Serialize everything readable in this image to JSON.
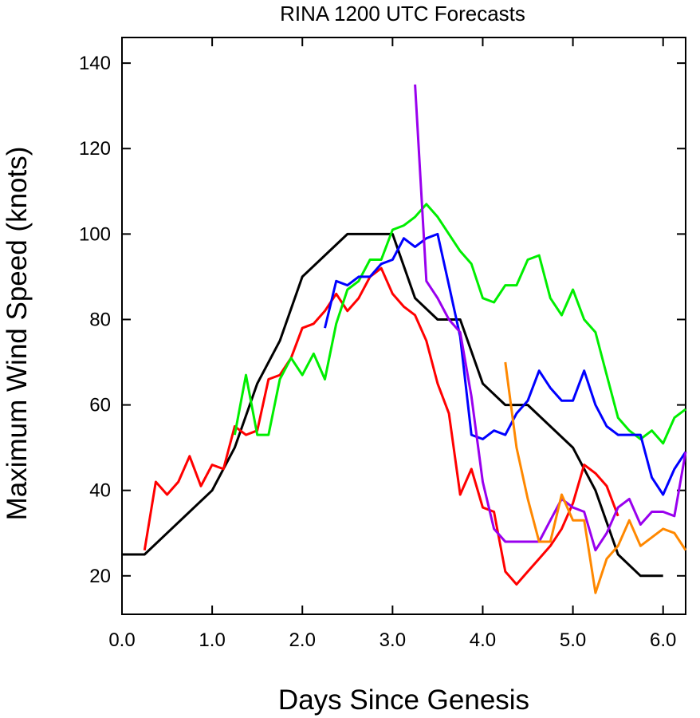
{
  "chart_data": {
    "type": "line",
    "title": "RINA 1200 UTC Forecasts",
    "xlabel": "Days Since Genesis",
    "ylabel": "Maximum Wind Speed (knots)",
    "xlim": [
      0,
      6.25
    ],
    "ylim": [
      11,
      146
    ],
    "xticks": [
      0,
      1,
      2,
      3,
      4,
      5,
      6
    ],
    "xtick_labels": [
      "0.0",
      "1.0",
      "2.0",
      "3.0",
      "4.0",
      "5.0",
      "6.0"
    ],
    "yticks": [
      20,
      40,
      60,
      80,
      100,
      120,
      140
    ],
    "ytick_labels": [
      "20",
      "40",
      "60",
      "80",
      "100",
      "120",
      "140"
    ],
    "grid": false,
    "series": [
      {
        "color": "#000000",
        "x": [
          0,
          0.25,
          0.5,
          0.75,
          1.0,
          1.25,
          1.5,
          1.75,
          2.0,
          2.25,
          2.5,
          2.75,
          3.0,
          3.25,
          3.5,
          3.75,
          4.0,
          4.25,
          4.5,
          4.75,
          5.0,
          5.25,
          5.5,
          5.75,
          6.0
        ],
        "y": [
          25,
          25,
          30,
          35,
          40,
          50,
          65,
          75,
          90,
          95,
          100,
          100,
          100,
          85,
          80,
          80,
          65,
          60,
          60,
          55,
          50,
          40,
          25,
          20,
          20
        ]
      },
      {
        "color": "#ff0000",
        "x": [
          0.25,
          0.375,
          0.5,
          0.625,
          0.75,
          0.875,
          1.0,
          1.125,
          1.25,
          1.375,
          1.5,
          1.625,
          1.75,
          1.875,
          2.0,
          2.125,
          2.25,
          2.375,
          2.5,
          2.625,
          2.75,
          2.875,
          3.0,
          3.125,
          3.25,
          3.375,
          3.5,
          3.625,
          3.75,
          3.875,
          4.0,
          4.125,
          4.25,
          4.375,
          4.5,
          4.625,
          4.75,
          4.875,
          5.0,
          5.125,
          5.25,
          5.375,
          5.5
        ],
        "y": [
          26,
          42,
          39,
          42,
          48,
          41,
          46,
          45,
          55,
          53,
          54,
          66,
          67,
          71,
          78,
          79,
          82,
          86,
          82,
          85,
          90,
          92,
          86,
          83,
          81,
          75,
          65,
          58,
          39,
          45,
          36,
          35,
          21,
          18,
          21,
          24,
          27,
          31,
          37,
          46,
          44,
          41,
          34
        ]
      },
      {
        "color": "#00ee00",
        "x": [
          1.25,
          1.375,
          1.5,
          1.625,
          1.75,
          1.875,
          2.0,
          2.125,
          2.25,
          2.375,
          2.5,
          2.625,
          2.75,
          2.875,
          3.0,
          3.125,
          3.25,
          3.375,
          3.5,
          3.625,
          3.75,
          3.875,
          4.0,
          4.125,
          4.25,
          4.375,
          4.5,
          4.625,
          4.75,
          4.875,
          5.0,
          5.125,
          5.25,
          5.375,
          5.5,
          5.625,
          5.75,
          5.875,
          6.0,
          6.125,
          6.25
        ],
        "y": [
          53,
          67,
          53,
          53,
          66,
          71,
          67,
          72,
          66,
          79,
          87,
          89,
          94,
          94,
          101,
          102,
          104,
          107,
          104,
          100,
          96,
          93,
          85,
          84,
          88,
          88,
          94,
          95,
          85,
          81,
          87,
          80,
          77,
          67,
          57,
          54,
          52,
          54,
          51,
          57,
          59
        ]
      },
      {
        "color": "#0000ff",
        "x": [
          2.25,
          2.375,
          2.5,
          2.625,
          2.75,
          2.875,
          3.0,
          3.125,
          3.25,
          3.375,
          3.5,
          3.625,
          3.75,
          3.875,
          4.0,
          4.125,
          4.25,
          4.375,
          4.5,
          4.625,
          4.75,
          4.875,
          5.0,
          5.125,
          5.25,
          5.375,
          5.5,
          5.625,
          5.75,
          5.875,
          6.0,
          6.125,
          6.25
        ],
        "y": [
          78,
          89,
          88,
          90,
          90,
          93,
          94,
          99,
          97,
          99,
          100,
          88,
          76,
          53,
          52,
          54,
          53,
          58,
          61,
          68,
          64,
          61,
          61,
          68,
          60,
          55,
          53,
          53,
          53,
          43,
          39,
          45,
          49
        ]
      },
      {
        "color": "#9900ee",
        "x": [
          3.25,
          3.375,
          3.5,
          3.625,
          3.75,
          3.875,
          4.0,
          4.125,
          4.25,
          4.375,
          4.5,
          4.625,
          4.75,
          4.875,
          5.0,
          5.125,
          5.25,
          5.375,
          5.5,
          5.625,
          5.75,
          5.875,
          6.0,
          6.125,
          6.25
        ],
        "y": [
          135,
          89,
          85,
          80,
          77,
          62,
          42,
          31,
          28,
          28,
          28,
          28,
          33,
          38,
          36,
          35,
          26,
          30,
          36,
          38,
          32,
          35,
          35,
          34,
          49
        ]
      },
      {
        "color": "#ff8800",
        "x": [
          4.25,
          4.375,
          4.5,
          4.625,
          4.75,
          4.875,
          5.0,
          5.125,
          5.25,
          5.375,
          5.5,
          5.625,
          5.75,
          5.875,
          6.0,
          6.125,
          6.25
        ],
        "y": [
          70,
          50,
          38,
          28,
          28,
          39,
          33,
          33,
          16,
          24,
          27,
          33,
          27,
          29,
          31,
          30,
          26
        ]
      }
    ]
  }
}
